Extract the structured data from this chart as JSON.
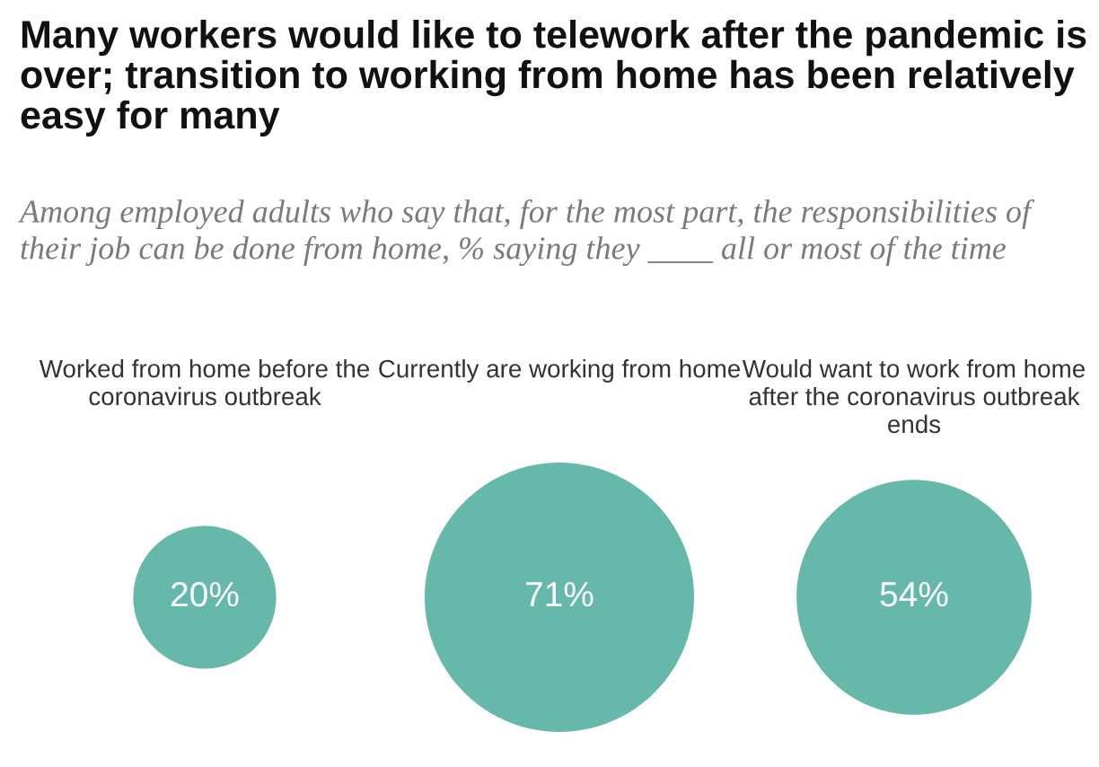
{
  "chart_data": {
    "type": "other",
    "title": "Many workers would like to telework after the pandemic is over; transition to working from home has been relatively easy for many",
    "subtitle": "Among employed adults who say that, for the most part, the responsibilities of their job can be done from home, % saying they ____ all or most of the time",
    "categories": [
      "Worked from home before the coronavirus outbreak",
      "Currently are working from home",
      "Would want to work from home after the coronavirus outbreak ends"
    ],
    "values": [
      20,
      71,
      54
    ],
    "color": "#66b8ab",
    "data_labels": true,
    "value_labels": [
      "20%",
      "71%",
      "54%"
    ]
  }
}
